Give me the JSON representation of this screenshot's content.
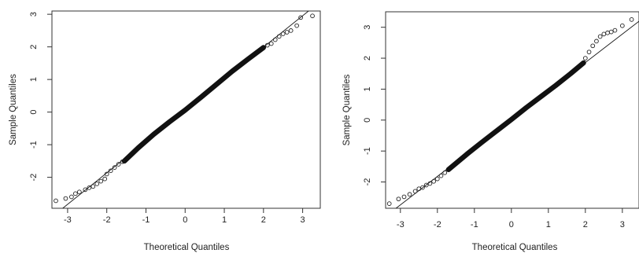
{
  "chart_data": [
    {
      "type": "scatter",
      "title": "",
      "xlabel": "Theoretical Quantiles",
      "ylabel": "Sample Quantiles",
      "xlim": [
        -3.4,
        3.45
      ],
      "ylim": [
        -2.95,
        3.1
      ],
      "x_ticks": [
        -3,
        -2,
        -1,
        0,
        1,
        2,
        3
      ],
      "y_ticks": [
        -2,
        -1,
        0,
        1,
        2,
        3
      ],
      "reference_line": {
        "slope": 0.964,
        "intercept": 0.063
      },
      "points": [
        [
          -3.3,
          -2.72
        ],
        [
          -3.05,
          -2.65
        ],
        [
          -2.9,
          -2.6
        ],
        [
          -2.8,
          -2.5
        ],
        [
          -2.7,
          -2.45
        ],
        [
          -2.55,
          -2.38
        ],
        [
          -2.45,
          -2.32
        ],
        [
          -2.35,
          -2.28
        ],
        [
          -2.25,
          -2.2
        ],
        [
          -2.15,
          -2.12
        ],
        [
          -2.05,
          -2.05
        ],
        [
          -2.0,
          -1.9
        ],
        [
          -1.9,
          -1.8
        ],
        [
          -1.8,
          -1.7
        ],
        [
          -1.7,
          -1.6
        ],
        [
          -1.6,
          -1.52
        ],
        [
          2.1,
          2.05
        ],
        [
          2.2,
          2.1
        ],
        [
          2.3,
          2.22
        ],
        [
          2.4,
          2.32
        ],
        [
          2.5,
          2.4
        ],
        [
          2.6,
          2.45
        ],
        [
          2.7,
          2.5
        ],
        [
          2.85,
          2.65
        ],
        [
          2.95,
          2.9
        ],
        [
          3.25,
          2.95
        ]
      ],
      "body_line": [
        [
          -1.55,
          -1.5
        ],
        [
          -1.2,
          -1.1
        ],
        [
          -0.8,
          -0.68
        ],
        [
          -0.4,
          -0.3
        ],
        [
          0.0,
          0.06
        ],
        [
          0.4,
          0.45
        ],
        [
          0.8,
          0.85
        ],
        [
          1.2,
          1.25
        ],
        [
          1.6,
          1.62
        ],
        [
          2.0,
          1.98
        ]
      ]
    },
    {
      "type": "scatter",
      "title": "",
      "xlabel": "Theoretical Quantiles",
      "ylabel": "Sample Quantiles",
      "xlim": [
        -3.4,
        3.45
      ],
      "ylim": [
        -2.85,
        3.5
      ],
      "x_ticks": [
        -3,
        -2,
        -1,
        0,
        1,
        2,
        3
      ],
      "y_ticks": [
        -2,
        -1,
        0,
        1,
        2,
        3
      ],
      "reference_line": {
        "slope": 0.92,
        "intercept": 0.02
      },
      "points": [
        [
          -3.3,
          -2.7
        ],
        [
          -3.05,
          -2.55
        ],
        [
          -2.9,
          -2.48
        ],
        [
          -2.75,
          -2.4
        ],
        [
          -2.6,
          -2.3
        ],
        [
          -2.5,
          -2.22
        ],
        [
          -2.4,
          -2.18
        ],
        [
          -2.3,
          -2.1
        ],
        [
          -2.2,
          -2.05
        ],
        [
          -2.1,
          -1.98
        ],
        [
          -2.0,
          -1.9
        ],
        [
          -1.9,
          -1.8
        ],
        [
          -1.8,
          -1.7
        ],
        [
          2.0,
          2.0
        ],
        [
          2.1,
          2.2
        ],
        [
          2.2,
          2.4
        ],
        [
          2.3,
          2.55
        ],
        [
          2.4,
          2.7
        ],
        [
          2.5,
          2.78
        ],
        [
          2.6,
          2.82
        ],
        [
          2.7,
          2.85
        ],
        [
          2.8,
          2.9
        ],
        [
          3.0,
          3.05
        ],
        [
          3.25,
          3.25
        ]
      ],
      "body_line": [
        [
          -1.7,
          -1.6
        ],
        [
          -1.2,
          -1.1
        ],
        [
          -0.8,
          -0.72
        ],
        [
          -0.4,
          -0.35
        ],
        [
          0.0,
          0.02
        ],
        [
          0.4,
          0.4
        ],
        [
          0.8,
          0.76
        ],
        [
          1.2,
          1.12
        ],
        [
          1.6,
          1.5
        ],
        [
          1.95,
          1.85
        ]
      ]
    }
  ]
}
